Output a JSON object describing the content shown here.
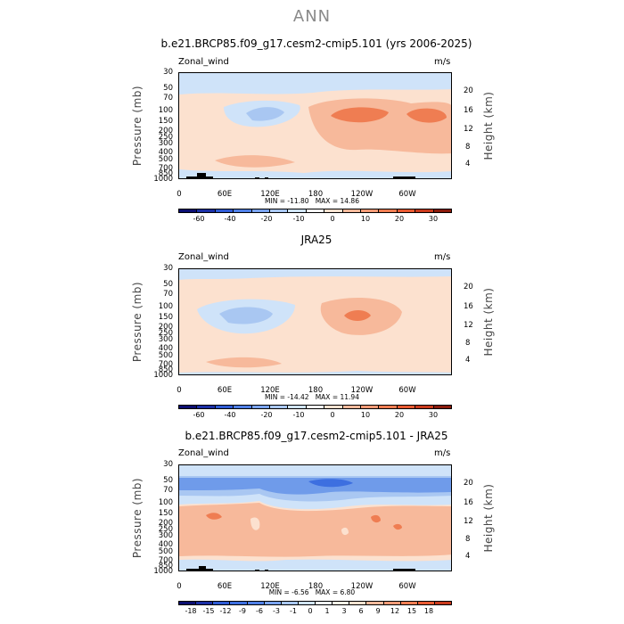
{
  "title": "ANN",
  "shared": {
    "variable": "Zonal_wind",
    "units": "m/s",
    "ylabel": "Pressure (mb)",
    "y2label": "Height (km)",
    "pressure_ticks": [
      "30",
      "50",
      "70",
      "100",
      "150",
      "200",
      "250",
      "300",
      "400",
      "500",
      "700",
      "850",
      "1000"
    ],
    "height_ticks": [
      "20",
      "16",
      "12",
      "8",
      "4"
    ],
    "x_ticks": [
      "0",
      "60E",
      "120E",
      "180",
      "120W",
      "60W"
    ]
  },
  "colors": {
    "main_title": "#8a8a8a",
    "neg_light": "#cfe3f9",
    "neg_mid": "#a9c7f2",
    "neg_dark": "#6f9bea",
    "pos_light": "#fce1cf",
    "pos_mid": "#f7b99b",
    "pos_dark": "#ef7d52"
  },
  "chart_data": [
    {
      "type": "heatmap",
      "title": "b.e21.BRCP85.f09_g17.cesm2-cmip5.101 (yrs 2006-2025)",
      "variable": "Zonal wind",
      "units": "m/s",
      "xlabel": "",
      "ylabel": "Pressure (mb)",
      "y2label": "Height (km)",
      "x_range": [
        0,
        360
      ],
      "y_range_mb": [
        1000,
        30
      ],
      "min_label": "MIN = -11.80",
      "max_label": "MAX = 14.86",
      "min": -11.8,
      "max": 14.86,
      "colorbar_levels": [
        "-60",
        "-40",
        "-20",
        "-10",
        "0",
        "10",
        "20",
        "30"
      ],
      "colorbar_colors": [
        "#0b0e71",
        "#1a2fa5",
        "#2f5bd4",
        "#4f7fe6",
        "#7aa3ef",
        "#a9c7f2",
        "#cfe3f9",
        "#ffffff",
        "#fce1cf",
        "#f7b99b",
        "#f39a76",
        "#ef7d52",
        "#e85a32",
        "#c93a1c",
        "#8a1a0b"
      ]
    },
    {
      "type": "heatmap",
      "title": "JRA25",
      "variable": "Zonal_wind",
      "units": "m/s",
      "xlabel": "",
      "ylabel": "Pressure (mb)",
      "y2label": "Height (km)",
      "x_range": [
        0,
        360
      ],
      "y_range_mb": [
        1000,
        30
      ],
      "min_label": "MIN = -14.42",
      "max_label": "MAX = 11.94",
      "min": -14.42,
      "max": 11.94,
      "colorbar_levels": [
        "-60",
        "-40",
        "-20",
        "-10",
        "0",
        "10",
        "20",
        "30"
      ],
      "colorbar_colors": [
        "#0b0e71",
        "#1a2fa5",
        "#2f5bd4",
        "#4f7fe6",
        "#7aa3ef",
        "#a9c7f2",
        "#cfe3f9",
        "#ffffff",
        "#fce1cf",
        "#f7b99b",
        "#f39a76",
        "#ef7d52",
        "#e85a32",
        "#c93a1c",
        "#8a1a0b"
      ]
    },
    {
      "type": "heatmap",
      "title": "b.e21.BRCP85.f09_g17.cesm2-cmip5.101 - JRA25",
      "variable": "Zonal_wind",
      "units": "m/s",
      "xlabel": "",
      "ylabel": "Pressure (mb)",
      "y2label": "Height (km)",
      "x_range": [
        0,
        360
      ],
      "y_range_mb": [
        1000,
        30
      ],
      "min_label": "MIN = -6.56",
      "max_label": "MAX = 6.80",
      "min": -6.56,
      "max": 6.8,
      "colorbar_levels": [
        "-18",
        "-15",
        "-12",
        "-9",
        "-6",
        "-3",
        "-1",
        "0",
        "1",
        "3",
        "6",
        "9",
        "12",
        "15",
        "18"
      ],
      "colorbar_colors": [
        "#0b0e71",
        "#1a2fa5",
        "#2f5bd4",
        "#3d6fe0",
        "#4f7fe6",
        "#7aa3ef",
        "#a9c7f2",
        "#cfe3f9",
        "#eef4fc",
        "#fdf0e6",
        "#fce1cf",
        "#f7b99b",
        "#f39a76",
        "#ef7d52",
        "#e85a32",
        "#c93a1c"
      ]
    }
  ]
}
